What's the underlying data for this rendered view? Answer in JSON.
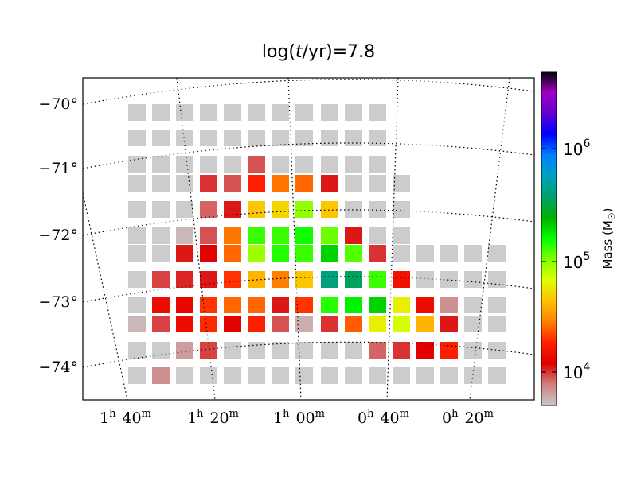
{
  "chart_data": {
    "type": "heatmap",
    "title_prefix": "log(",
    "title_var": "t",
    "title_suffix": "/yr)=7.8",
    "y_ticks": [
      {
        "label": "−70°",
        "value": -70
      },
      {
        "label": "−71°",
        "value": -71
      },
      {
        "label": "−72°",
        "value": -72
      },
      {
        "label": "−73°",
        "value": -73
      },
      {
        "label": "−74°",
        "value": -74
      }
    ],
    "x_ticks": [
      {
        "h": "1",
        "m": "40"
      },
      {
        "h": "1",
        "m": "20"
      },
      {
        "h": "1",
        "m": "00"
      },
      {
        "h": "0",
        "m": "40"
      },
      {
        "h": "0",
        "m": "20"
      }
    ],
    "colorbar": {
      "label": "Mass (M",
      "label_sub": "☉",
      "label_end": ")",
      "scale": "log",
      "range": [
        5000,
        5000000
      ],
      "ticks": [
        {
          "base": "10",
          "exp": "6",
          "value": 1000000
        },
        {
          "base": "10",
          "exp": "5",
          "value": 100000
        },
        {
          "base": "10",
          "exp": "4",
          "value": 10000
        }
      ],
      "stops": [
        "#c8c8c8",
        "#d08080",
        "#e00000",
        "#ff2000",
        "#ff8000",
        "#ffc000",
        "#e0ff00",
        "#80ff00",
        "#00ff00",
        "#00b000",
        "#00a070",
        "#00a0c0",
        "#0080ff",
        "#0000ff",
        "#6000d0",
        "#a000c0",
        "#000000"
      ]
    },
    "columns": [
      "c0",
      "c1",
      "c2",
      "c3",
      "c4",
      "c5",
      "c6",
      "c7",
      "c8",
      "c9",
      "c10",
      "c11",
      "c12",
      "c13",
      "c14",
      "c15"
    ],
    "rows": [
      {
        "y": "r0",
        "cells": [
          "empty",
          "empty",
          "empty",
          "empty",
          "empty",
          "empty",
          "empty",
          "empty",
          "empty",
          "empty",
          "empty",
          null,
          null,
          null,
          null,
          null
        ]
      },
      {
        "y": "r1",
        "cells": [
          "empty",
          "empty",
          "empty",
          "empty",
          "empty",
          "empty",
          "empty",
          "empty",
          "empty",
          "empty",
          "empty",
          null,
          null,
          null,
          null,
          null
        ]
      },
      {
        "y": "r2",
        "cells": [
          "empty",
          "empty",
          "empty",
          "empty",
          "empty",
          9000,
          "empty",
          "empty",
          "empty",
          "empty",
          "empty",
          null,
          null,
          null,
          null,
          null
        ]
      },
      {
        "y": "r3",
        "cells": [
          "empty",
          "empty",
          "empty",
          10000,
          9000,
          18000,
          27000,
          25000,
          11000,
          "empty",
          "empty",
          "empty",
          null,
          null,
          null,
          null
        ]
      },
      {
        "y": "r4",
        "cells": [
          "empty",
          "empty",
          "empty",
          8500,
          11000,
          45000,
          50000,
          95000,
          45000,
          "empty",
          "empty",
          "empty",
          null,
          null,
          null,
          null
        ]
      },
      {
        "y": "r5",
        "cells": [
          "empty",
          "empty",
          5500,
          9000,
          27000,
          130000,
          130000,
          150000,
          110000,
          11000,
          "empty",
          "empty",
          null,
          null,
          null,
          null
        ]
      },
      {
        "y": "r6",
        "cells": [
          "empty",
          "empty",
          11000,
          12000,
          25000,
          90000,
          140000,
          130000,
          200000,
          120000,
          10000,
          "empty",
          "empty",
          "empty",
          "empty",
          "empty"
        ]
      },
      {
        "y": "r7",
        "cells": [
          "empty",
          9500,
          10500,
          11000,
          20000,
          40000,
          28000,
          45000,
          400000,
          350000,
          130000,
          15000,
          "empty",
          "empty",
          "empty",
          "empty"
        ]
      },
      {
        "y": "r8",
        "cells": [
          "empty",
          14000,
          13000,
          20000,
          25000,
          25000,
          11000,
          20000,
          140000,
          170000,
          200000,
          60000,
          14000,
          7000,
          "empty",
          "empty"
        ]
      },
      {
        "y": "r9",
        "cells": [
          5500,
          9500,
          14000,
          19000,
          12000,
          18000,
          9000,
          5800,
          10000,
          24000,
          60000,
          70000,
          40000,
          11000,
          "empty",
          "empty"
        ]
      },
      {
        "y": "r10",
        "cells": [
          "empty",
          "empty",
          6500,
          9500,
          "empty",
          "empty",
          "empty",
          "empty",
          "empty",
          "empty",
          8500,
          10000,
          12000,
          18000,
          "empty",
          "empty"
        ]
      },
      {
        "y": "r11",
        "cells": [
          "empty",
          7000,
          "empty",
          "empty",
          "empty",
          "empty",
          "empty",
          "empty",
          "empty",
          "empty",
          "empty",
          "empty",
          "empty",
          "empty",
          "empty",
          "empty"
        ]
      }
    ],
    "empty_color": "#cccccc"
  }
}
